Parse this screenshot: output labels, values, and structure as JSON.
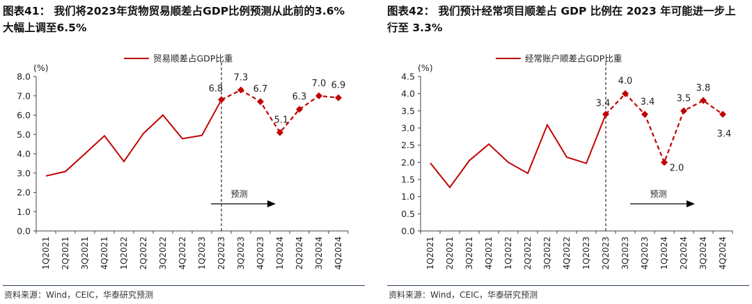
{
  "colors": {
    "series": "#c00000",
    "axis": "#404040",
    "text": "#222222",
    "divider": "#2a3b57"
  },
  "chart_data": [
    {
      "type": "line",
      "title_line1": "图表41：  我们将2023年货物贸易顺差占GDP比例预测从此前的3.6%",
      "title_line2": "大幅上调至6.5%",
      "legend": "贸易顺差占GDP比重",
      "unit": "(%)",
      "ylim": [
        0,
        8
      ],
      "ystep": 1,
      "ytick_decimals": 1,
      "categories": [
        "1Q2021",
        "2Q2021",
        "3Q2021",
        "4Q2021",
        "1Q2022",
        "2Q2022",
        "3Q2022",
        "4Q2022",
        "1Q2023",
        "2Q2023",
        "3Q2023",
        "4Q2023",
        "1Q2024",
        "2Q2024",
        "3Q2024",
        "4Q2024"
      ],
      "values": [
        2.85,
        3.08,
        4.0,
        4.93,
        3.6,
        5.05,
        6.0,
        4.78,
        4.95,
        6.8,
        7.3,
        6.7,
        5.1,
        6.3,
        7.0,
        6.9
      ],
      "forecast_start": 9,
      "labels": [
        {
          "i": 9,
          "text": "6.8"
        },
        {
          "i": 10,
          "text": "7.3"
        },
        {
          "i": 11,
          "text": "6.7"
        },
        {
          "i": 12,
          "text": "5.1"
        },
        {
          "i": 13,
          "text": "6.3"
        },
        {
          "i": 14,
          "text": "7.0"
        },
        {
          "i": 15,
          "text": "6.9"
        }
      ],
      "forecast_label": "预测",
      "source": "资料来源：Wind，CEIC，华泰研究预测"
    },
    {
      "type": "line",
      "title_line1": "图表42：  我们预计经常项目顺差占 GDP 比例在 2023 年可能进一步上",
      "title_line2": "行至 3.3%",
      "legend": "经常账户顺差占GDP比重",
      "unit": "(%)",
      "ylim": [
        0,
        4.5
      ],
      "ystep": 0.5,
      "ytick_decimals": 1,
      "categories": [
        "1Q2021",
        "2Q2021",
        "3Q2021",
        "4Q2021",
        "1Q2022",
        "2Q2022",
        "3Q2022",
        "4Q2022",
        "1Q2023",
        "2Q2023",
        "3Q2023",
        "4Q2023",
        "1Q2024",
        "2Q2024",
        "3Q2024",
        "4Q2024"
      ],
      "values": [
        1.98,
        1.27,
        2.05,
        2.53,
        2.0,
        1.68,
        3.09,
        2.15,
        1.97,
        3.4,
        4.0,
        3.4,
        2.0,
        3.5,
        3.8,
        3.4
      ],
      "forecast_start": 9,
      "labels": [
        {
          "i": 9,
          "text": "3.4"
        },
        {
          "i": 10,
          "text": "4.0"
        },
        {
          "i": 11,
          "text": "3.4"
        },
        {
          "i": 12,
          "text": "2.0"
        },
        {
          "i": 13,
          "text": "3.5"
        },
        {
          "i": 14,
          "text": "3.8"
        },
        {
          "i": 15,
          "text": "3.4"
        }
      ],
      "forecast_label": "预测",
      "source": "资料来源：Wind，CEIC，华泰研究预测"
    }
  ]
}
